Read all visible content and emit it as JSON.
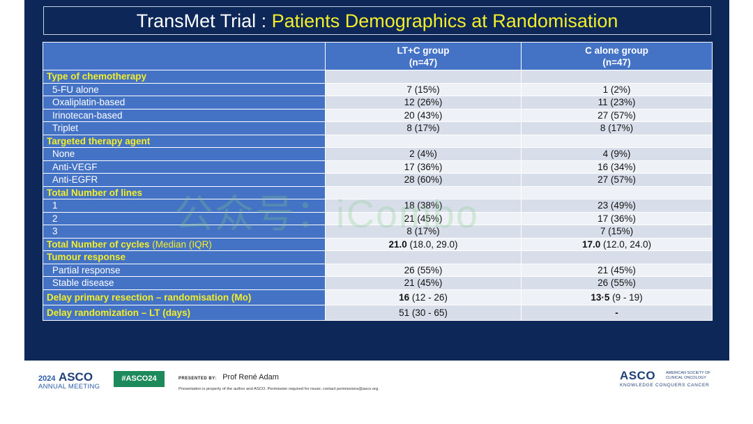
{
  "title": {
    "prefix": "TransMet Trial : ",
    "highlight": "Patients Demographics at Randomisation"
  },
  "table": {
    "col1": {
      "name": "LT+C group",
      "n": "(n=47)"
    },
    "col2": {
      "name": "C alone group",
      "n": "(n=47)"
    },
    "type_chemo": "Type of chemotherapy",
    "chemo_rows": [
      {
        "label": "5-FU alone",
        "a": "7 (15%)",
        "b": "1 (2%)"
      },
      {
        "label": "Oxaliplatin-based",
        "a": "12 (26%)",
        "b": "11 (23%)"
      },
      {
        "label": "Irinotecan-based",
        "a": "20 (43%)",
        "b": "27 (57%)"
      },
      {
        "label": "Triplet",
        "a": "8 (17%)",
        "b": "8 (17%)"
      }
    ],
    "targeted": "Targeted therapy agent",
    "targeted_rows": [
      {
        "label": "None",
        "a": "2 (4%)",
        "b": "4 (9%)"
      },
      {
        "label": "Anti-VEGF",
        "a": "17 (36%)",
        "b": "16 (34%)"
      },
      {
        "label": "Anti-EGFR",
        "a": "28 (60%)",
        "b": "27 (57%)"
      }
    ],
    "lines": "Total Number of lines",
    "lines_rows": [
      {
        "label": "1",
        "a": "18 (38%)",
        "b": "23 (49%)"
      },
      {
        "label": "2",
        "a": "21 (45%)",
        "b": "17 (36%)"
      },
      {
        "label": "3",
        "a": "8  (17%)",
        "b": "7 (15%)"
      }
    ],
    "cycles": {
      "label": "Total Number of cycles",
      "label_sub": " (Median (IQR)",
      "a_bold": "21.0",
      "a_rest": " (18.0, 29.0)",
      "b_bold": "17.0",
      "b_rest": " (12.0, 24.0)"
    },
    "tumour": "Tumour response",
    "tumour_rows": [
      {
        "label": "Partial response",
        "a": "26 (55%)",
        "b": "21 (45%)"
      },
      {
        "label": "Stable disease",
        "a": "21 (45%)",
        "b": "26 (55%)"
      }
    ],
    "delay_primary": {
      "label": "Delay primary resection –  randomisation (Mo)",
      "a_bold": "16",
      "a_rest": " (12 - 26)",
      "b_bold": "13·5",
      "b_rest": " (9 - 19)"
    },
    "delay_lt": {
      "label": "Delay randomization – LT (days)",
      "a": "51 (30 - 65)",
      "b": "-"
    }
  },
  "watermark": "公众号：iCombo",
  "footer": {
    "year": "2024",
    "asco": "ASCO",
    "annual": "ANNUAL MEETING",
    "hashtag": "#ASCO24",
    "presented_by": "PRESENTED BY:",
    "presenter": "Prof René Adam",
    "note": "Presentation is property of the author and ASCO. Permission required for reuse; contact permissions@asco.org.",
    "logo": "ASCO",
    "society": "AMERICAN SOCIETY OF CLINICAL ONCOLOGY",
    "tagline": "KNOWLEDGE CONQUERS CANCER"
  }
}
